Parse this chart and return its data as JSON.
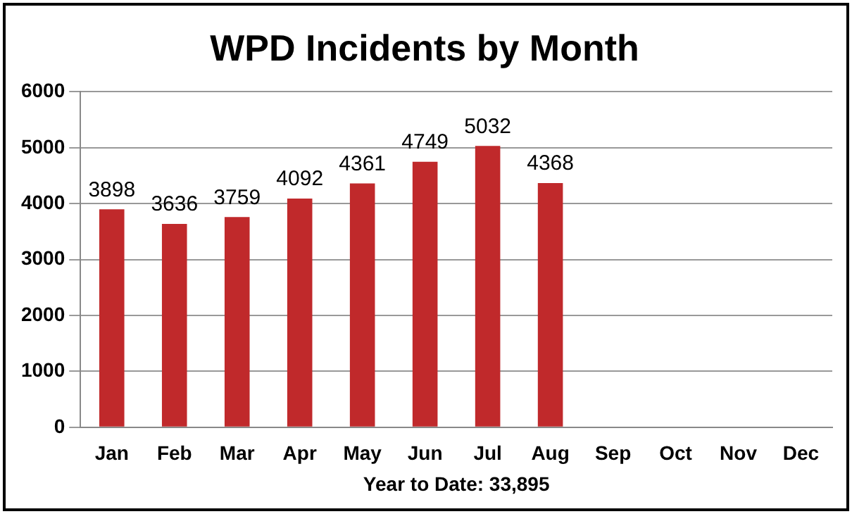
{
  "chart_data": {
    "type": "bar",
    "title": "WPD Incidents by Month",
    "xlabel": "Year to Date: 33,895",
    "categories": [
      "Jan",
      "Feb",
      "Mar",
      "Apr",
      "May",
      "Jun",
      "Jul",
      "Aug",
      "Sep",
      "Oct",
      "Nov",
      "Dec"
    ],
    "values": [
      3898,
      3636,
      3759,
      4092,
      4361,
      4749,
      5032,
      4368,
      null,
      null,
      null,
      null
    ],
    "color": "#c0292b",
    "ylim": [
      0,
      6000
    ],
    "yticks": [
      0,
      1000,
      2000,
      3000,
      4000,
      5000,
      6000
    ],
    "grid": "y",
    "data_labels": true,
    "legend": false
  }
}
